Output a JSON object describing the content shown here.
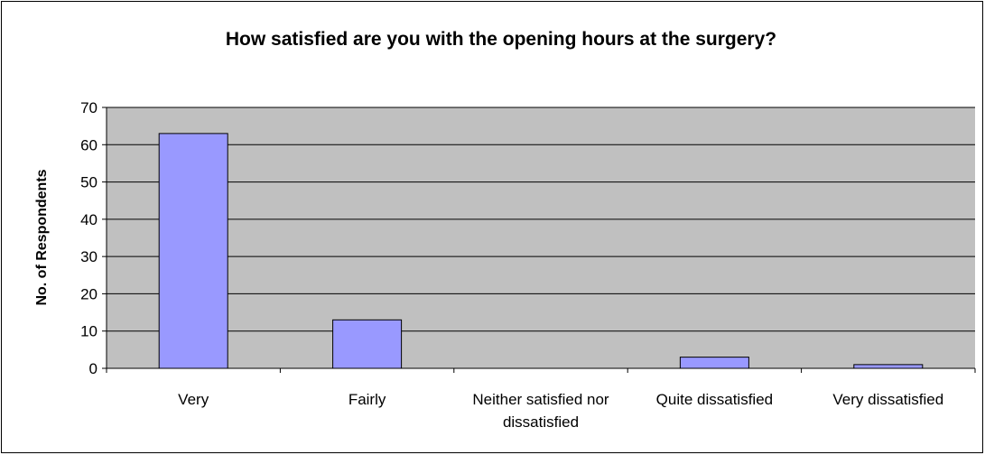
{
  "chart_data": {
    "type": "bar",
    "title": "How satisfied are you with the opening hours at the surgery?",
    "y_label": "No. of Respondents",
    "categories": [
      "Very",
      "Fairly",
      "Neither satisfied nor dissatisfied",
      "Quite dissatisfied",
      "Very dissatisfied"
    ],
    "values": [
      63,
      13,
      0,
      3,
      1
    ],
    "color": "#9999ff",
    "ylim": [
      0,
      70
    ],
    "yticks": [
      0,
      10,
      20,
      30,
      40,
      50,
      60,
      70
    ],
    "grid": true
  }
}
